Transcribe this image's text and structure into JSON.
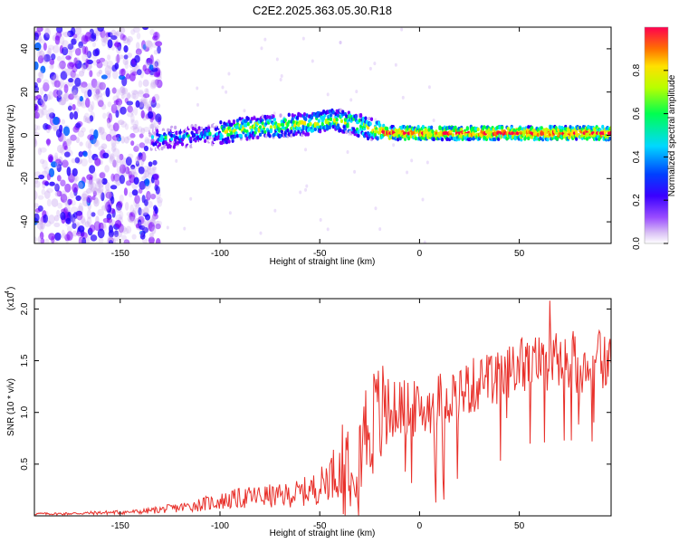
{
  "chart_data": [
    {
      "type": "heatmap",
      "title": "C2E2.2025.363.05.30.R18",
      "xlabel": "Height of straight line (km)",
      "ylabel": "Frequency (Hz)",
      "xlim": [
        -193,
        96
      ],
      "ylim": [
        -50,
        50
      ],
      "xticks": [
        -150,
        -100,
        -50,
        0,
        50
      ],
      "yticks": [
        -40,
        -20,
        0,
        20,
        40
      ],
      "colorbar": {
        "label": "Normalized spectral amplitude",
        "range": [
          0,
          1
        ],
        "ticks": [
          0.0,
          0.2,
          0.4,
          0.6,
          0.8
        ],
        "tick_labels": [
          "0.0",
          "0.2",
          "0.4",
          "0.6",
          "0.8"
        ],
        "colors": [
          "#ffffff",
          "#c9a6f0",
          "#7a00ff",
          "#2400ff",
          "#0060ff",
          "#00e0ff",
          "#00ff40",
          "#c0ff00",
          "#ffe000",
          "#ff7000",
          "#ff0040"
        ]
      },
      "ridge": {
        "x": [
          -135,
          -120,
          -100,
          -90,
          -75,
          -60,
          -50,
          -42,
          -35,
          -28,
          -20,
          -15,
          0,
          20,
          50,
          95
        ],
        "freq": [
          -2,
          -1,
          1,
          3,
          4,
          5,
          6,
          7,
          6,
          4,
          2,
          1,
          1,
          1,
          1,
          1
        ]
      }
    },
    {
      "type": "line",
      "xlabel": "Height of straight line (km)",
      "ylabel": "SNR (10 * v/v)",
      "multiplier_base": "(x10",
      "multiplier_exp": "4",
      "multiplier_close": ")",
      "xlim": [
        -193,
        96
      ],
      "ylim": [
        0,
        2.1
      ],
      "xticks": [
        -150,
        -100,
        -50,
        0,
        50
      ],
      "yticks": [
        0.5,
        1.0,
        1.5,
        2.0
      ],
      "series": [
        {
          "name": "SNR",
          "color": "#e8302a",
          "x": [
            -193,
            -180,
            -160,
            -140,
            -130,
            -120,
            -110,
            -100,
            -90,
            -80,
            -70,
            -60,
            -50,
            -45,
            -40,
            -35,
            -30,
            -25,
            -20,
            -15,
            -10,
            -5,
            0,
            10,
            20,
            30,
            40,
            50,
            60,
            70,
            80,
            90,
            96
          ],
          "values": [
            0.02,
            0.02,
            0.03,
            0.04,
            0.06,
            0.08,
            0.11,
            0.14,
            0.17,
            0.19,
            0.19,
            0.22,
            0.28,
            0.4,
            0.45,
            0.6,
            0.72,
            0.88,
            0.95,
            1.0,
            1.05,
            1.05,
            1.0,
            1.12,
            1.2,
            1.28,
            1.32,
            1.45,
            1.48,
            1.5,
            1.45,
            1.52,
            1.48
          ]
        }
      ]
    }
  ]
}
